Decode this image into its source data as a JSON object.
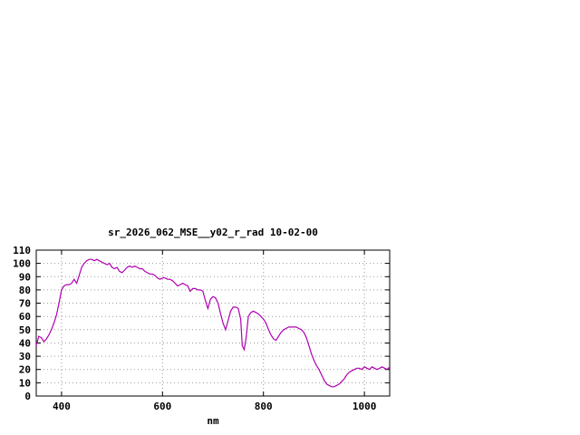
{
  "chart_data": {
    "type": "line",
    "title": "sr_2026_062_MSE__y02_r_rad 10-02-00",
    "xlabel": "nm",
    "ylabel": "",
    "xlim": [
      350,
      1050
    ],
    "ylim": [
      0,
      110
    ],
    "xticks": [
      400,
      600,
      800,
      1000
    ],
    "yticks": [
      0,
      10,
      20,
      30,
      40,
      50,
      60,
      70,
      80,
      90,
      100,
      110
    ],
    "grid": true,
    "legend": "none",
    "colors": {
      "background": "#ffffff",
      "axis": "#000000",
      "grid": "#9a9a9a",
      "line": "#b000b0"
    },
    "x": [
      350,
      355,
      360,
      365,
      370,
      375,
      380,
      385,
      390,
      395,
      400,
      405,
      410,
      415,
      420,
      425,
      430,
      435,
      440,
      445,
      450,
      455,
      460,
      465,
      470,
      475,
      480,
      485,
      490,
      495,
      500,
      505,
      510,
      515,
      520,
      525,
      530,
      535,
      540,
      545,
      550,
      555,
      560,
      565,
      570,
      575,
      580,
      585,
      590,
      595,
      600,
      605,
      610,
      615,
      620,
      625,
      630,
      635,
      640,
      645,
      650,
      655,
      660,
      665,
      670,
      675,
      680,
      685,
      690,
      695,
      700,
      705,
      710,
      715,
      720,
      725,
      730,
      735,
      740,
      745,
      750,
      755,
      758,
      762,
      766,
      770,
      775,
      780,
      785,
      790,
      795,
      800,
      805,
      810,
      815,
      820,
      825,
      830,
      835,
      840,
      845,
      850,
      855,
      860,
      865,
      870,
      875,
      880,
      885,
      890,
      895,
      900,
      905,
      910,
      915,
      920,
      925,
      930,
      935,
      940,
      945,
      950,
      955,
      960,
      965,
      970,
      975,
      980,
      985,
      990,
      995,
      1000,
      1005,
      1010,
      1015,
      1020,
      1025,
      1030,
      1035,
      1040,
      1045,
      1050
    ],
    "y": [
      38,
      45,
      44,
      41,
      43,
      46,
      50,
      55,
      61,
      70,
      80,
      83,
      84,
      84,
      85,
      88,
      85,
      91,
      97,
      100,
      102,
      103,
      103,
      102,
      103,
      102,
      101,
      100,
      99,
      100,
      97,
      96,
      97,
      94,
      93,
      95,
      97,
      98,
      97,
      98,
      97,
      96,
      96,
      94,
      93,
      92,
      92,
      91,
      89,
      88,
      89,
      89,
      88,
      88,
      87,
      85,
      83,
      84,
      85,
      84,
      83,
      79,
      81,
      81,
      80,
      80,
      79,
      72,
      66,
      73,
      75,
      74,
      70,
      62,
      55,
      50,
      57,
      64,
      67,
      67,
      66,
      58,
      38,
      35,
      45,
      60,
      63,
      64,
      63,
      62,
      60,
      58,
      55,
      50,
      46,
      43,
      42,
      45,
      48,
      50,
      51,
      52,
      52,
      52,
      52,
      51,
      50,
      48,
      44,
      38,
      32,
      27,
      23,
      20,
      16,
      12,
      9,
      8,
      7,
      7,
      8,
      9,
      11,
      13,
      16,
      18,
      19,
      20,
      21,
      21,
      20,
      22,
      21,
      20,
      22,
      21,
      20,
      21,
      22,
      21,
      20,
      22
    ]
  }
}
